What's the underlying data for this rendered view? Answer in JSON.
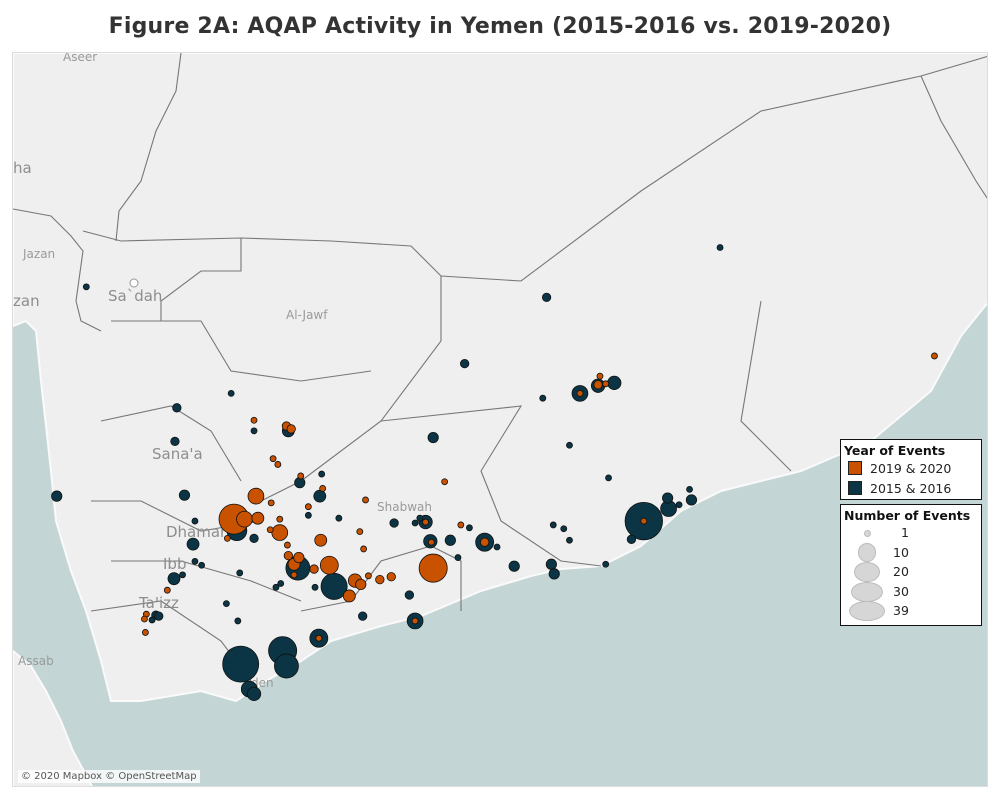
{
  "title": "Figure 2A: AQAP Activity in Yemen (2015-2016 vs. 2019-2020)",
  "attribution": "© 2020 Mapbox © OpenStreetMap",
  "map_labels": {
    "aseer": "Aseer",
    "ha": "ha",
    "jazan": "Jazan",
    "zan": "zan",
    "sadah": "Sa`dah",
    "aljawf": "Al-Jawf",
    "sanaa": "Sana'a",
    "dhamar": "Dhamar",
    "ibb": "Ibb",
    "taizz": "Ta'izz",
    "shabwah": "Shabwah",
    "assab": "Assab",
    "aden": "Aden"
  },
  "colors": {
    "recent": "#c85200",
    "earlier": "#0b3545",
    "sea": "#c3d5d5",
    "land": "#efefef"
  },
  "legend": {
    "year_title": "Year of Events",
    "years": [
      {
        "label": "2019 & 2020",
        "color": "#c85200"
      },
      {
        "label": "2015 & 2016",
        "color": "#0b3545"
      }
    ],
    "size_title": "Number of Events",
    "sizes": [
      {
        "label": "1",
        "value": 1
      },
      {
        "label": "10",
        "value": 10
      },
      {
        "label": "20",
        "value": 20
      },
      {
        "label": "30",
        "value": 30
      },
      {
        "label": "39",
        "value": 39
      }
    ]
  },
  "events_2015_2016": [
    [
      43.27,
      16.9,
      1
    ],
    [
      42.96,
      14.72,
      3
    ],
    [
      44.22,
      15.64,
      2
    ],
    [
      44.2,
      15.29,
      2
    ],
    [
      44.79,
      15.79,
      1
    ],
    [
      45.03,
      15.4,
      1
    ],
    [
      45.39,
      15.4,
      4
    ],
    [
      45.51,
      14.86,
      3
    ],
    [
      45.74,
      14.95,
      1
    ],
    [
      45.72,
      14.72,
      4
    ],
    [
      45.6,
      14.52,
      1
    ],
    [
      45.92,
      14.49,
      1
    ],
    [
      46.91,
      15.33,
      3
    ],
    [
      44.3,
      14.73,
      3
    ],
    [
      44.41,
      14.46,
      1
    ],
    [
      44.39,
      14.22,
      4
    ],
    [
      44.85,
      14.36,
      11
    ],
    [
      45.03,
      14.28,
      2
    ],
    [
      44.41,
      14.04,
      1
    ],
    [
      44.48,
      14.0,
      1
    ],
    [
      44.19,
      13.86,
      4
    ],
    [
      44.28,
      13.9,
      1
    ],
    [
      44.88,
      13.92,
      1
    ],
    [
      44.74,
      13.6,
      1
    ],
    [
      44.86,
      13.42,
      1
    ],
    [
      44.0,
      13.48,
      2
    ],
    [
      44.03,
      13.47,
      2
    ],
    [
      43.96,
      13.43,
      1
    ],
    [
      45.26,
      13.77,
      1
    ],
    [
      45.31,
      13.81,
      1
    ],
    [
      45.49,
      13.97,
      16
    ],
    [
      45.67,
      13.77,
      1
    ],
    [
      45.87,
      13.78,
      19
    ],
    [
      46.17,
      13.47,
      2
    ],
    [
      46.66,
      13.69,
      2
    ],
    [
      46.5,
      14.44,
      2
    ],
    [
      46.72,
      14.44,
      1
    ],
    [
      46.77,
      14.49,
      1
    ],
    [
      46.83,
      14.45,
      5
    ],
    [
      46.88,
      14.25,
      5
    ],
    [
      47.09,
      14.26,
      3
    ],
    [
      47.17,
      14.08,
      1
    ],
    [
      47.29,
      14.39,
      1
    ],
    [
      45.71,
      13.24,
      9
    ],
    [
      46.72,
      13.42,
      7
    ],
    [
      45.33,
      13.11,
      22
    ],
    [
      45.37,
      12.95,
      16
    ],
    [
      44.89,
      12.97,
      36
    ],
    [
      44.98,
      12.71,
      7
    ],
    [
      45.03,
      12.66,
      5
    ],
    [
      47.24,
      16.1,
      2
    ],
    [
      48.06,
      15.74,
      1
    ],
    [
      48.45,
      15.79,
      7
    ],
    [
      48.64,
      15.87,
      5
    ],
    [
      48.81,
      15.9,
      5
    ],
    [
      48.34,
      15.25,
      1
    ],
    [
      48.75,
      14.91,
      1
    ],
    [
      47.45,
      14.24,
      9
    ],
    [
      47.58,
      14.19,
      1
    ],
    [
      47.76,
      13.99,
      3
    ],
    [
      48.15,
      14.01,
      3
    ],
    [
      48.18,
      13.91,
      3
    ],
    [
      48.17,
      14.42,
      1
    ],
    [
      48.28,
      14.38,
      1
    ],
    [
      48.34,
      14.26,
      1
    ],
    [
      48.72,
      14.01,
      1
    ],
    [
      49.12,
      14.46,
      39
    ],
    [
      48.99,
      14.27,
      2
    ],
    [
      49.37,
      14.7,
      3
    ],
    [
      49.38,
      14.59,
      7
    ],
    [
      49.49,
      14.63,
      1
    ],
    [
      49.6,
      14.79,
      1
    ],
    [
      49.62,
      14.68,
      3
    ],
    [
      48.1,
      16.79,
      2
    ],
    [
      49.92,
      17.31,
      1
    ]
  ],
  "events_2019_2020": [
    [
      52.17,
      16.18,
      1
    ],
    [
      45.03,
      15.51,
      1
    ],
    [
      45.23,
      15.11,
      1
    ],
    [
      45.28,
      15.05,
      1
    ],
    [
      45.37,
      15.45,
      2
    ],
    [
      45.42,
      15.42,
      2
    ],
    [
      45.52,
      14.93,
      1
    ],
    [
      45.75,
      14.8,
      1
    ],
    [
      45.05,
      14.72,
      7
    ],
    [
      45.21,
      14.65,
      1
    ],
    [
      45.6,
      14.61,
      1
    ],
    [
      44.82,
      14.48,
      25
    ],
    [
      44.93,
      14.48,
      7
    ],
    [
      45.07,
      14.49,
      4
    ],
    [
      45.3,
      14.48,
      1
    ],
    [
      45.2,
      14.37,
      1
    ],
    [
      45.3,
      14.34,
      7
    ],
    [
      44.75,
      14.28,
      1
    ],
    [
      45.73,
      14.26,
      4
    ],
    [
      45.38,
      14.21,
      1
    ],
    [
      45.45,
      14.01,
      4
    ],
    [
      45.39,
      14.1,
      2
    ],
    [
      45.5,
      14.08,
      3
    ],
    [
      45.45,
      13.9,
      1
    ],
    [
      45.66,
      13.96,
      2
    ],
    [
      45.82,
      14.0,
      9
    ],
    [
      46.09,
      13.84,
      5
    ],
    [
      46.15,
      13.8,
      3
    ],
    [
      46.03,
      13.68,
      4
    ],
    [
      46.23,
      13.89,
      1
    ],
    [
      46.35,
      13.85,
      2
    ],
    [
      46.47,
      13.88,
      2
    ],
    [
      46.18,
      14.17,
      1
    ],
    [
      46.14,
      14.35,
      1
    ],
    [
      46.2,
      14.68,
      1
    ],
    [
      47.03,
      14.87,
      1
    ],
    [
      47.2,
      14.42,
      1
    ],
    [
      46.91,
      13.97,
      22
    ],
    [
      44.12,
      13.74,
      1
    ],
    [
      43.9,
      13.49,
      1
    ],
    [
      43.88,
      13.44,
      1
    ],
    [
      43.89,
      13.3,
      1
    ],
    [
      46.83,
      14.45,
      1
    ],
    [
      46.89,
      14.24,
      1
    ],
    [
      47.45,
      14.24,
      2
    ],
    [
      45.71,
      13.24,
      1
    ],
    [
      46.72,
      13.42,
      1
    ],
    [
      48.45,
      15.79,
      1
    ],
    [
      48.64,
      15.88,
      2
    ],
    [
      48.72,
      15.89,
      1
    ],
    [
      48.66,
      15.97,
      1
    ],
    [
      49.12,
      14.46,
      1
    ]
  ]
}
